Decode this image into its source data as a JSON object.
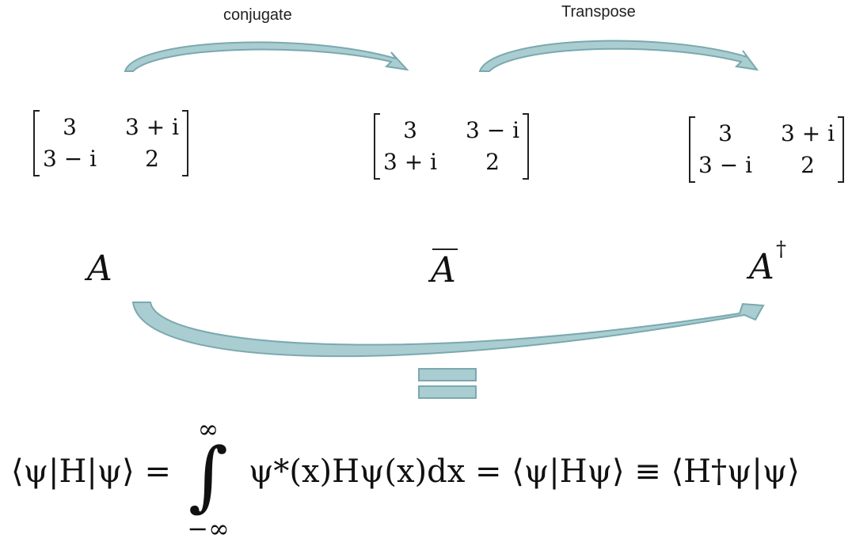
{
  "labels": {
    "conjugate": "conjugate",
    "transpose": "Transpose"
  },
  "matrices": {
    "A": [
      [
        "3",
        "3 + i"
      ],
      [
        "3 − i",
        "2"
      ]
    ],
    "A_bar": [
      [
        "3",
        "3 − i"
      ],
      [
        "3 + i",
        "2"
      ]
    ],
    "A_dagger": [
      [
        "3",
        "3 + i"
      ],
      [
        "3 − i",
        "2"
      ]
    ]
  },
  "symbols": {
    "a": "A",
    "a_bar": "A",
    "a_dagger": "A",
    "dagger_mark": "†"
  },
  "equation": {
    "lhs": "⟨ψ|H|ψ⟩ =",
    "upper_limit": "∞",
    "integral_sign": "∫",
    "lower_limit": "−∞",
    "rhs": "ψ*(x)Hψ(x)dx = ⟨ψ|Hψ⟩ ≡ ⟨H†ψ|ψ⟩"
  },
  "colors": {
    "arrow_fill": "#a9cdd1",
    "arrow_stroke": "#7aa9ae"
  }
}
